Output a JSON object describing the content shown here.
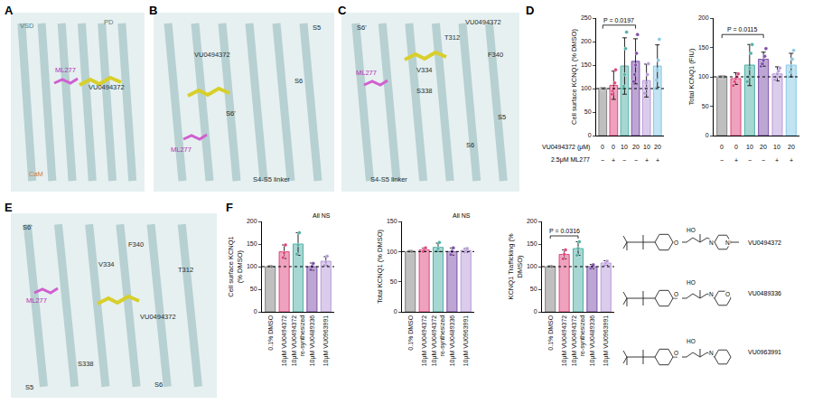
{
  "panels": [
    {
      "letter": "A",
      "labels": [
        "VSD",
        "PD",
        "ML277",
        "VU0494372",
        "CaM"
      ]
    },
    {
      "letter": "B",
      "labels": [
        "VU0494372",
        "S5",
        "S6",
        "S6'",
        "ML277",
        "S4-S5 linker"
      ]
    },
    {
      "letter": "C",
      "labels": [
        "S6'",
        "VU0494372",
        "T312",
        "F340",
        "ML277",
        "V334",
        "S338",
        "S6",
        "S5",
        "S4-S5 linker"
      ]
    },
    {
      "letter": "D"
    },
    {
      "letter": "E",
      "labels": [
        "S6'",
        "F340",
        "V334",
        "T312",
        "ML277",
        "VU0494372",
        "S338",
        "S5",
        "S6"
      ]
    },
    {
      "letter": "F"
    }
  ],
  "d_conditions": {
    "row_labels": [
      "VU0494372 (μM)",
      "2.5μM ML277"
    ],
    "values": [
      [
        "0",
        "0",
        "10",
        "20",
        "10",
        "20"
      ],
      [
        "−",
        "+",
        "−",
        "−",
        "+",
        "+"
      ]
    ]
  },
  "chart_data": [
    {
      "type": "bar",
      "y_label": "Cell surface KCNQ1 (% DMSO)",
      "categories": [
        null,
        null,
        null,
        null,
        null,
        null
      ],
      "values": [
        100,
        107,
        148,
        158,
        117,
        148
      ],
      "errors": [
        0,
        30,
        60,
        48,
        35,
        45
      ],
      "points": [
        [
          100,
          100,
          100,
          100,
          100
        ],
        [
          88,
          95,
          100,
          112,
          140
        ],
        [
          100,
          105,
          130,
          185,
          220
        ],
        [
          115,
          130,
          150,
          175,
          215
        ],
        [
          90,
          100,
          112,
          130,
          153
        ],
        [
          100,
          118,
          140,
          160,
          205
        ]
      ],
      "colors": [
        "#808080",
        "#e0457b",
        "#4fb0a5",
        "#7b4ea8",
        "#b79ad9",
        "#86c8e6"
      ],
      "baseline": 100,
      "ylim": [
        0,
        250
      ],
      "yticks": [
        0,
        50,
        100,
        150,
        200,
        250
      ],
      "grid": false,
      "annotations": [
        {
          "text": "P = 0.0197",
          "from": 0,
          "to": 3,
          "y": 235
        }
      ]
    },
    {
      "type": "bar",
      "y_label": "Total KCNQ1 (FIU)",
      "categories": [
        null,
        null,
        null,
        null,
        null,
        null
      ],
      "values": [
        100,
        97,
        120,
        130,
        105,
        120
      ],
      "errors": [
        2,
        10,
        35,
        12,
        12,
        20
      ],
      "points": [
        [
          100,
          100,
          100,
          100,
          100
        ],
        [
          85,
          92,
          97,
          100,
          105
        ],
        [
          92,
          100,
          115,
          140,
          155
        ],
        [
          118,
          122,
          128,
          135,
          148
        ],
        [
          95,
          100,
          105,
          110,
          115
        ],
        [
          100,
          108,
          118,
          130,
          145
        ]
      ],
      "colors": [
        "#808080",
        "#e0457b",
        "#4fb0a5",
        "#7b4ea8",
        "#b79ad9",
        "#86c8e6"
      ],
      "baseline": 100,
      "ylim": [
        0,
        200
      ],
      "yticks": [
        0,
        50,
        100,
        150,
        200
      ],
      "grid": false,
      "annotations": [
        {
          "text": "P = 0.0115",
          "from": 0,
          "to": 3,
          "y": 172
        }
      ]
    },
    {
      "type": "bar",
      "y_label": "Cell surface KCNQ1 (% DMSO)",
      "categories": [
        "0.1% DMSO",
        "10μM VU0494372",
        "10μM VU0494372 re-synthesized",
        "10μM VU0489336",
        "10μM VU0963991"
      ],
      "values": [
        100,
        133,
        150,
        100,
        112
      ],
      "errors": [
        0,
        15,
        25,
        8,
        10
      ],
      "points": [
        [
          100,
          100,
          100
        ],
        [
          120,
          130,
          148
        ],
        [
          128,
          148,
          175
        ],
        [
          93,
          100,
          107
        ],
        [
          103,
          110,
          123
        ]
      ],
      "colors": [
        "#808080",
        "#e0457b",
        "#4fb0a5",
        "#7b4ea8",
        "#b79ad9"
      ],
      "baseline": 100,
      "ylim": [
        0,
        200
      ],
      "yticks": [
        0,
        50,
        100,
        150,
        200
      ],
      "grid": false,
      "annotations": [
        {
          "text": "All NS"
        }
      ]
    },
    {
      "type": "bar",
      "y_label": "Total KCNQ1 (% DMSO)",
      "categories": [
        "0.1% DMSO",
        "10μM VU0494372",
        "10μM VU0494372 re-synthesized",
        "10μM VU0489336",
        "10μM VU0963991"
      ],
      "values": [
        100,
        103,
        107,
        100,
        102
      ],
      "errors": [
        0,
        3,
        7,
        6,
        3
      ],
      "points": [
        [
          100,
          100,
          100
        ],
        [
          100,
          103,
          106
        ],
        [
          101,
          105,
          115
        ],
        [
          95,
          100,
          106
        ],
        [
          99,
          102,
          105
        ]
      ],
      "colors": [
        "#808080",
        "#e0457b",
        "#4fb0a5",
        "#7b4ea8",
        "#b79ad9"
      ],
      "baseline": 100,
      "ylim": [
        0,
        150
      ],
      "yticks": [
        0,
        50,
        100,
        150
      ],
      "grid": false,
      "annotations": [
        {
          "text": "All NS"
        }
      ]
    },
    {
      "type": "bar",
      "y_label": "KCNQ1 Trafficking (% DMSO)",
      "categories": [
        "0.1% DMSO",
        "10μM VU0494372",
        "10μM VU0494372 re-synthesized",
        "10μM VU0489336",
        "10μM VU0963991"
      ],
      "values": [
        100,
        127,
        140,
        100,
        108
      ],
      "errors": [
        0,
        10,
        15,
        5,
        5
      ],
      "points": [
        [
          100,
          100,
          100
        ],
        [
          117,
          127,
          137
        ],
        [
          125,
          140,
          155
        ],
        [
          96,
          100,
          104
        ],
        [
          103,
          108,
          112
        ]
      ],
      "colors": [
        "#808080",
        "#e0457b",
        "#4fb0a5",
        "#7b4ea8",
        "#b79ad9"
      ],
      "baseline": 100,
      "ylim": [
        0,
        200
      ],
      "yticks": [
        0,
        50,
        100,
        150,
        200
      ],
      "grid": false,
      "annotations": [
        {
          "text": "P = 0.0316",
          "from": 0,
          "to": 2,
          "y": 168
        }
      ]
    }
  ],
  "structures": [
    {
      "name": "VU0494372",
      "atoms": [
        "O",
        "HO",
        "N",
        "N"
      ]
    },
    {
      "name": "VU0489336",
      "atoms": [
        "O",
        "HO",
        "N",
        "O"
      ]
    },
    {
      "name": "VU0963991",
      "atoms": [
        "O",
        "HO",
        "N"
      ]
    }
  ]
}
